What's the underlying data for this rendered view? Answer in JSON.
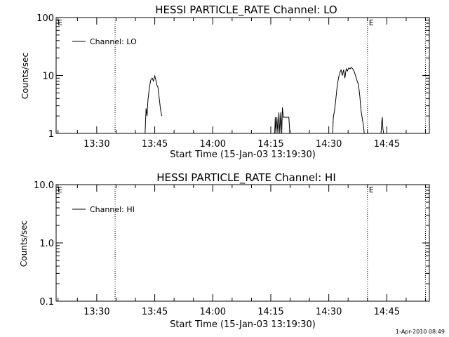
{
  "footer_timestamp": "1-Apr-2010 08:49",
  "chart_data": [
    {
      "type": "line",
      "title": "HESSI PARTICLE_RATE Channel: LO",
      "xlabel": "Start Time (15-Jan-03 13:19:30)",
      "ylabel": "Counts/sec",
      "y_scale": "log",
      "ylim": [
        1,
        100
      ],
      "y_ticks": [
        1,
        10,
        100
      ],
      "y_tick_labels": [
        "1",
        "10",
        "100"
      ],
      "xlim": [
        "13:19:30",
        "14:56:00"
      ],
      "x_ticks": [
        "13:30",
        "13:45",
        "14:00",
        "14:15",
        "14:30",
        "14:45"
      ],
      "legend": "Channel: LO",
      "legend_position": "top-left",
      "grid": false,
      "event_markers": [
        {
          "time": "13:34:45",
          "label": ""
        },
        {
          "time": "14:40:00",
          "label": "E"
        },
        {
          "time": "14:55:00",
          "label": ""
        }
      ],
      "corner_label": "E",
      "series": [
        {
          "name": "Channel: LO",
          "segments": [
            [
              [
                "13:42:30",
                1.0
              ],
              [
                "13:42:45",
                2.7
              ],
              [
                "13:43:00",
                2.0
              ],
              [
                "13:43:15",
                3.8
              ],
              [
                "13:43:40",
                6.5
              ],
              [
                "13:44:00",
                8.5
              ],
              [
                "13:44:20",
                9.0
              ],
              [
                "13:44:40",
                8.0
              ],
              [
                "13:45:00",
                9.8
              ],
              [
                "13:45:15",
                8.5
              ],
              [
                "13:45:30",
                7.0
              ],
              [
                "13:45:50",
                6.2
              ],
              [
                "13:46:10",
                4.0
              ],
              [
                "13:46:30",
                2.6
              ],
              [
                "13:46:50",
                2.0
              ]
            ],
            [
              [
                "14:16:00",
                1.0
              ],
              [
                "14:16:10",
                1.9
              ],
              [
                "14:16:20",
                1.0
              ],
              [
                "14:16:35",
                1.9
              ],
              [
                "14:16:50",
                1.0
              ],
              [
                "14:17:05",
                2.3
              ],
              [
                "14:17:20",
                1.0
              ],
              [
                "14:17:35",
                2.3
              ],
              [
                "14:17:50",
                1.0
              ],
              [
                "14:18:00",
                2.8
              ],
              [
                "14:18:15",
                1.9
              ],
              [
                "14:19:00",
                1.9
              ],
              [
                "14:19:40",
                1.9
              ],
              [
                "14:19:55",
                1.0
              ]
            ],
            [
              [
                "14:31:00",
                1.0
              ],
              [
                "14:31:10",
                1.9
              ],
              [
                "14:31:30",
                2.5
              ],
              [
                "14:31:50",
                4.0
              ],
              [
                "14:32:10",
                6.5
              ],
              [
                "14:32:30",
                9.0
              ],
              [
                "14:32:50",
                11.0
              ],
              [
                "14:33:10",
                12.5
              ],
              [
                "14:33:30",
                10.0
              ],
              [
                "14:33:50",
                12.5
              ],
              [
                "14:34:10",
                9.0
              ],
              [
                "14:34:30",
                13.0
              ],
              [
                "14:34:50",
                12.0
              ],
              [
                "14:35:10",
                13.5
              ],
              [
                "14:35:30",
                13.0
              ],
              [
                "14:35:50",
                13.8
              ],
              [
                "14:36:10",
                13.0
              ],
              [
                "14:36:30",
                12.0
              ],
              [
                "14:37:00",
                9.5
              ],
              [
                "14:37:20",
                8.0
              ],
              [
                "14:37:40",
                7.0
              ],
              [
                "14:38:00",
                4.5
              ],
              [
                "14:38:20",
                2.5
              ],
              [
                "14:38:40",
                1.8
              ],
              [
                "14:39:00",
                1.3
              ],
              [
                "14:39:10",
                1.0
              ]
            ],
            [
              [
                "14:43:30",
                1.0
              ],
              [
                "14:43:40",
                1.5
              ],
              [
                "14:43:50",
                1.9
              ],
              [
                "14:44:00",
                1.2
              ],
              [
                "14:44:10",
                1.0
              ]
            ]
          ]
        }
      ]
    },
    {
      "type": "line",
      "title": "HESSI PARTICLE_RATE Channel: HI",
      "xlabel": "Start Time (15-Jan-03 13:19:30)",
      "ylabel": "Counts/sec",
      "y_scale": "log",
      "ylim": [
        0.1,
        10
      ],
      "y_ticks": [
        0.1,
        1,
        10
      ],
      "y_tick_labels": [
        "0.1",
        "1.0",
        "10.0"
      ],
      "xlim": [
        "13:19:30",
        "14:56:00"
      ],
      "x_ticks": [
        "13:30",
        "13:45",
        "14:00",
        "14:15",
        "14:30",
        "14:45"
      ],
      "legend": "Channel: HI",
      "legend_position": "top-left",
      "grid": false,
      "event_markers": [
        {
          "time": "13:34:45",
          "label": ""
        },
        {
          "time": "14:40:00",
          "label": "E"
        },
        {
          "time": "14:55:00",
          "label": ""
        }
      ],
      "corner_label": "E",
      "series": [
        {
          "name": "Channel: HI",
          "segments": []
        }
      ]
    }
  ]
}
